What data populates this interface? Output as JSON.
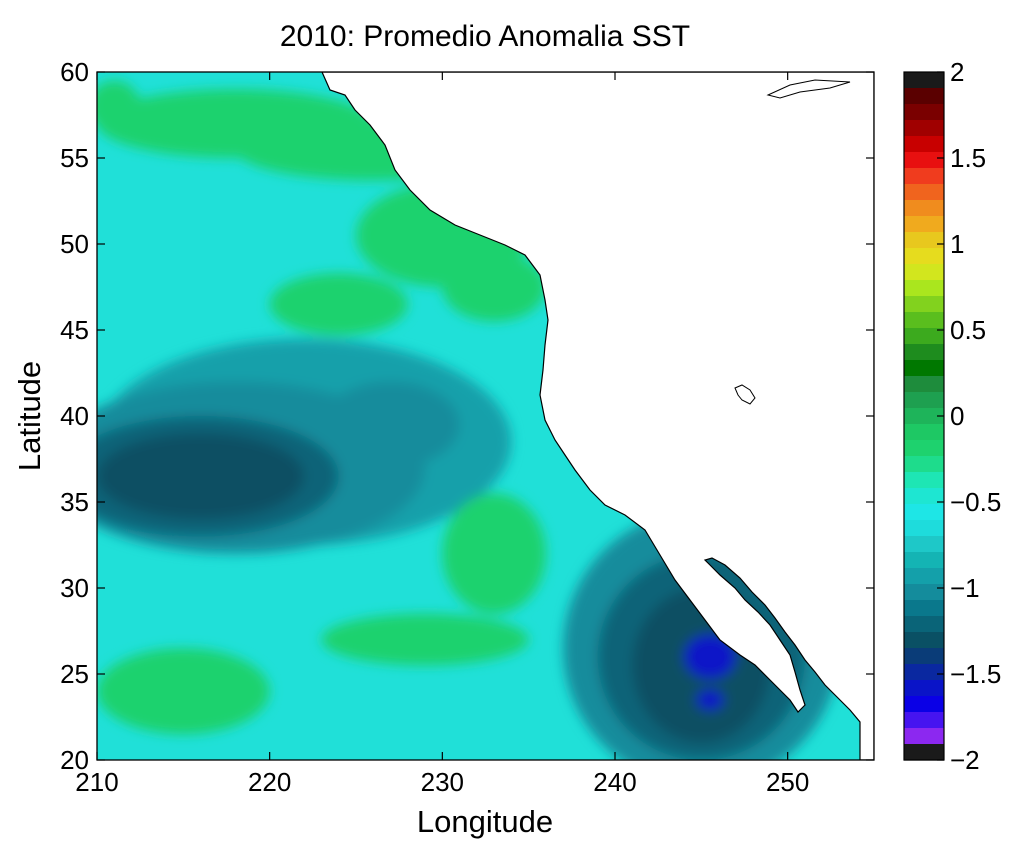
{
  "title": "2010:  Promedio Anomalia SST",
  "xlabel": "Longitude",
  "ylabel": "Latitude",
  "x_ticks": [
    "210",
    "220",
    "230",
    "240",
    "250"
  ],
  "y_ticks": [
    "60",
    "55",
    "50",
    "45",
    "40",
    "35",
    "30",
    "25",
    "20"
  ],
  "colorbar": {
    "tick_labels": [
      "2",
      "1.5",
      "1",
      "0.5",
      "0",
      "−0.5",
      "−1",
      "−1.5",
      "−2"
    ],
    "range": [
      -2,
      2
    ],
    "colors_top_to_bottom": [
      "#1a1a1a",
      "#5a0000",
      "#7a0000",
      "#a00000",
      "#c80000",
      "#e81010",
      "#f03c1e",
      "#f0641e",
      "#f08c1e",
      "#f0aa1e",
      "#e8c81e",
      "#e6dc1e",
      "#d2e61e",
      "#aae61e",
      "#82d21e",
      "#5abe1e",
      "#3caa1e",
      "#1e8c1e",
      "#007800",
      "#1e8c3c",
      "#1ea050",
      "#1eb45a",
      "#1ec864",
      "#1ed26e",
      "#1edc8c",
      "#1ee6b4",
      "#1ee6d2",
      "#1ee6e6",
      "#1edcdc",
      "#1ec8c8",
      "#14b4b4",
      "#14a0aa",
      "#148c9c",
      "#0a788c",
      "#0a6478",
      "#0a5064",
      "#0a3c78",
      "#0a28a0",
      "#0a14c8",
      "#0a00e6",
      "#4614f0",
      "#8c28f0",
      "#1a1a1a"
    ]
  },
  "map": {
    "lon_range": [
      210,
      255
    ],
    "lat_range": [
      20,
      60
    ],
    "ocean_base_color": "#20e0d8",
    "land_color": "#ffffff",
    "field": [
      {
        "lon": 216,
        "lat": 36.5,
        "rx": 6,
        "ry": 2.5,
        "color": "#0a5064"
      },
      {
        "lon": 216,
        "lat": 36.5,
        "rx": 8,
        "ry": 3.5,
        "color": "#0a6478"
      },
      {
        "lon": 218,
        "lat": 37,
        "rx": 11,
        "ry": 5,
        "color": "#148c9c"
      },
      {
        "lon": 222,
        "lat": 38.5,
        "rx": 12,
        "ry": 6,
        "color": "#14a0aa"
      },
      {
        "lon": 227,
        "lat": 39.5,
        "rx": 4,
        "ry": 2.5,
        "color": "#148c9c"
      },
      {
        "lon": 245,
        "lat": 25.5,
        "rx": 4,
        "ry": 4.5,
        "color": "#0a5064"
      },
      {
        "lon": 245.5,
        "lat": 26,
        "rx": 1.5,
        "ry": 1.3,
        "color": "#0a14c8"
      },
      {
        "lon": 245.5,
        "lat": 23.5,
        "rx": 0.8,
        "ry": 0.6,
        "color": "#0a14c8"
      },
      {
        "lon": 245,
        "lat": 26,
        "rx": 6,
        "ry": 6,
        "color": "#0a6478"
      },
      {
        "lon": 245,
        "lat": 26.5,
        "rx": 8,
        "ry": 8,
        "color": "#148c9c"
      },
      {
        "lon": 218,
        "lat": 57,
        "rx": 8,
        "ry": 2,
        "color": "#1ed26e"
      },
      {
        "lon": 226,
        "lat": 55.5,
        "rx": 8,
        "ry": 1.8,
        "color": "#1ed26e"
      },
      {
        "lon": 230,
        "lat": 50.5,
        "rx": 5,
        "ry": 3,
        "color": "#1ed26e"
      },
      {
        "lon": 233,
        "lat": 47.5,
        "rx": 3,
        "ry": 2,
        "color": "#1ed26e"
      },
      {
        "lon": 224,
        "lat": 46.5,
        "rx": 4,
        "ry": 1.8,
        "color": "#1ed26e"
      },
      {
        "lon": 233,
        "lat": 32,
        "rx": 3,
        "ry": 3.5,
        "color": "#1ed26e"
      },
      {
        "lon": 229,
        "lat": 27,
        "rx": 6,
        "ry": 1.5,
        "color": "#1ed26e"
      },
      {
        "lon": 215,
        "lat": 24,
        "rx": 5,
        "ry": 2.5,
        "color": "#1ed26e"
      },
      {
        "lon": 211,
        "lat": 58,
        "rx": 1.5,
        "ry": 1.5,
        "color": "#1ed26e"
      }
    ]
  }
}
